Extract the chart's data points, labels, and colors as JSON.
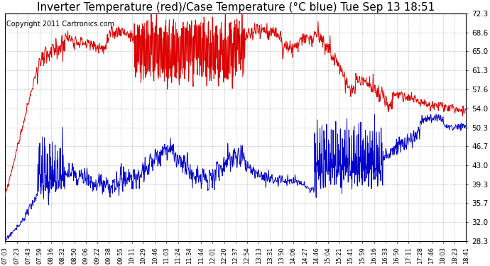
{
  "title": "Inverter Temperature (red)/Case Temperature (°C blue) Tue Sep 13 18:51",
  "copyright": "Copyright 2011 Cartronics.com",
  "ylim": [
    28.3,
    72.3
  ],
  "yticks": [
    28.3,
    32.0,
    35.7,
    39.3,
    43.0,
    46.7,
    50.3,
    54.0,
    57.6,
    61.3,
    65.0,
    68.6,
    72.3
  ],
  "xtick_labels": [
    "07:03",
    "07:23",
    "07:43",
    "07:59",
    "08:16",
    "08:32",
    "08:50",
    "09:06",
    "09:22",
    "09:38",
    "09:55",
    "10:11",
    "10:29",
    "10:46",
    "11:03",
    "11:24",
    "11:34",
    "11:44",
    "12:01",
    "12:20",
    "12:37",
    "12:54",
    "13:13",
    "13:31",
    "13:50",
    "14:06",
    "14:27",
    "14:46",
    "15:04",
    "15:21",
    "15:41",
    "15:59",
    "16:16",
    "16:33",
    "16:50",
    "17:11",
    "17:28",
    "17:46",
    "18:03",
    "18:23",
    "18:41"
  ],
  "bg_color": "#ffffff",
  "plot_bg_color": "#ffffff",
  "grid_color": "#888888",
  "red_color": "#dd0000",
  "blue_color": "#0000cc",
  "title_fontsize": 11,
  "copyright_fontsize": 7,
  "fig_width": 6.9,
  "fig_height": 3.75,
  "fig_dpi": 100
}
